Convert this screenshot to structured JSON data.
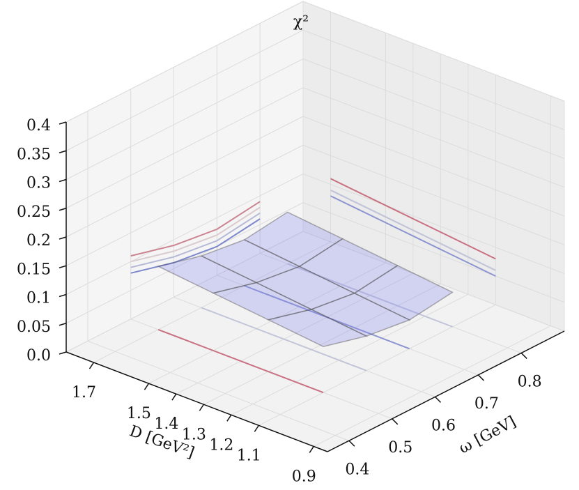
{
  "chart_data": {
    "type": "surface3d",
    "zlabel": "χ²",
    "xlabel": "D [GeV²]",
    "ylabel": "ω [GeV]",
    "x": [
      1.1,
      1.3,
      1.5,
      1.7
    ],
    "y": [
      0.5,
      0.6,
      0.7,
      0.8
    ],
    "z": [
      [
        0.08,
        0.06,
        0.05,
        0.06
      ],
      [
        0.09,
        0.07,
        0.06,
        0.07
      ],
      [
        0.1,
        0.08,
        0.07,
        0.08
      ],
      [
        0.11,
        0.09,
        0.08,
        0.09
      ]
    ],
    "xlim": [
      0.85,
      1.8
    ],
    "ylim": [
      0.35,
      0.9
    ],
    "zlim": [
      0,
      0.4
    ],
    "xticks": [
      1.7,
      1.5,
      1.4,
      1.3,
      1.2,
      1.1,
      0.9
    ],
    "yticks": [
      0.4,
      0.5,
      0.6,
      0.7,
      0.8
    ],
    "zticks": [
      {
        "value": 0,
        "label": "0.0"
      },
      0.05,
      0.1,
      0.15,
      0.2,
      0.25,
      0.3,
      0.35,
      0.4
    ],
    "surface_color": "#8888ee",
    "colormap": [
      "#3b4cc0",
      "#dddddd",
      "#b40426"
    ],
    "grid": true
  }
}
